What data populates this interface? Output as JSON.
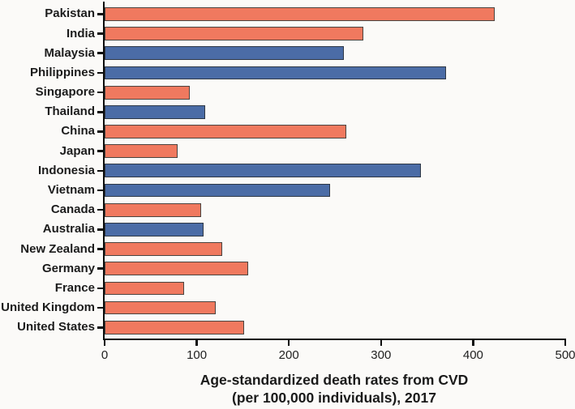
{
  "chart_data": {
    "type": "bar",
    "orientation": "horizontal",
    "title": "",
    "xlabel_line1": "Age-standardized death rates from CVD",
    "xlabel_line2": "(per 100,000 individuals), 2017",
    "categories": [
      "Pakistan",
      "India",
      "Malaysia",
      "Philippines",
      "Singapore",
      "Thailand",
      "China",
      "Japan",
      "Indonesia",
      "Vietnam",
      "Canada",
      "Australia",
      "New Zealand",
      "Germany",
      "France",
      "United Kingdom",
      "United States"
    ],
    "values": [
      423,
      281,
      260,
      371,
      92,
      109,
      262,
      79,
      343,
      245,
      105,
      107,
      128,
      156,
      86,
      121,
      151
    ],
    "bar_color_keys": [
      "salmon",
      "salmon",
      "blue",
      "blue",
      "salmon",
      "blue",
      "salmon",
      "salmon",
      "blue",
      "blue",
      "salmon",
      "blue",
      "salmon",
      "salmon",
      "salmon",
      "salmon",
      "salmon"
    ],
    "colors": {
      "salmon": "#f0795f",
      "blue": "#4b6ca6",
      "salmon_edge": "#4a4440",
      "blue_edge": "#2f3846",
      "axis": "#0d0d0d",
      "background": "#fbfaf8"
    },
    "x_ticks": [
      0,
      100,
      200,
      300,
      400,
      500
    ],
    "xlim": [
      0,
      500
    ],
    "grid": false,
    "legend": null
  }
}
